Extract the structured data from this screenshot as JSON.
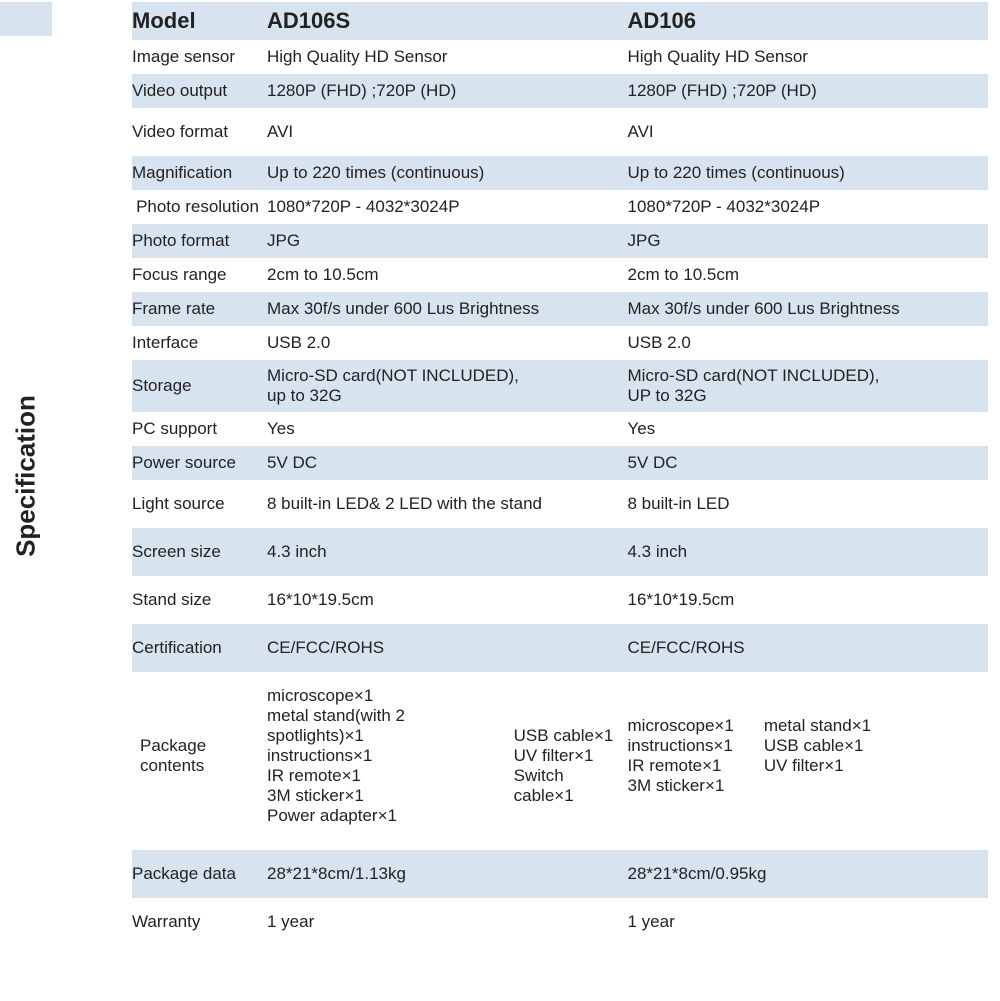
{
  "colors": {
    "alt_row": "#d7e3ef",
    "text": "#222222",
    "background": "#ffffff"
  },
  "typography": {
    "base_fontsize": 17,
    "header_fontsize": 22,
    "side_label_fontsize": 26
  },
  "side_label": "Specification",
  "header": {
    "label": "Model",
    "col_a": "AD106S",
    "col_b": "AD106"
  },
  "rows": [
    {
      "alt": false,
      "label": "Image sensor",
      "a": "High Quality HD Sensor",
      "b": "High Quality HD Sensor"
    },
    {
      "alt": true,
      "label": "Video output",
      "a": "1280P (FHD) ;720P (HD)",
      "b": "1280P (FHD) ;720P (HD)"
    },
    {
      "alt": false,
      "label": "Video format",
      "a": "AVI",
      "b": "AVI",
      "tall": true
    },
    {
      "alt": true,
      "label": "Magnification",
      "a": "Up to 220 times (continuous)",
      "b": "Up to 220 times (continuous)"
    },
    {
      "alt": false,
      "label": "Photo\nresolution",
      "label_center": true,
      "a": "1080*720P - 4032*3024P",
      "b": "1080*720P - 4032*3024P"
    },
    {
      "alt": true,
      "label": "Photo format",
      "a": "JPG",
      "b": "JPG"
    },
    {
      "alt": false,
      "label": "Focus range",
      "a": "2cm to 10.5cm",
      "b": "2cm to 10.5cm"
    },
    {
      "alt": true,
      "label": "Frame rate",
      "a": "Max 30f/s under 600 Lus Brightness",
      "b": "Max 30f/s under 600 Lus Brightness"
    },
    {
      "alt": false,
      "label": "Interface",
      "a": "USB 2.0",
      "b": "USB 2.0"
    },
    {
      "alt": true,
      "label": "Storage",
      "a": "Micro-SD card(NOT INCLUDED),\nup to 32G",
      "b": "Micro-SD card(NOT INCLUDED),\nUP to 32G"
    },
    {
      "alt": false,
      "label": "PC support",
      "a": "Yes",
      "b": "Yes"
    },
    {
      "alt": true,
      "label": "Power source",
      "a": "5V DC",
      "b": "5V DC"
    },
    {
      "alt": false,
      "label": "Light source",
      "a": "8 built-in LED& 2 LED with the stand",
      "b": "8 built-in LED",
      "tall": true
    },
    {
      "alt": true,
      "label": "Screen size",
      "a": "4.3 inch",
      "b": "4.3 inch",
      "tall": true
    },
    {
      "alt": false,
      "label": "Stand size",
      "a": "16*10*19.5cm",
      "b": "16*10*19.5cm",
      "tall": true
    },
    {
      "alt": true,
      "label": "Certification",
      "a": "CE/FCC/ROHS",
      "b": "CE/FCC/ROHS",
      "tall": true
    }
  ],
  "package_row": {
    "label": "Package\ncontents",
    "a_col1": "microscope×1\nmetal stand(with 2 spotlights)×1\ninstructions×1\nIR remote×1\n3M sticker×1\nPower adapter×1",
    "a_col2": "\n\nUSB cable×1\nUV filter×1\nSwitch cable×1",
    "b_col1": "microscope×1\ninstructions×1\nIR remote×1\n3M sticker×1",
    "b_col2": "metal stand×1\nUSB cable×1\nUV filter×1"
  },
  "trailing_rows": [
    {
      "alt": true,
      "label": "Package data",
      "a": "28*21*8cm/1.13kg",
      "b": "28*21*8cm/0.95kg",
      "tall": true
    },
    {
      "alt": false,
      "label": "Warranty",
      "a": "1 year",
      "b": "1 year",
      "tall": true
    }
  ]
}
